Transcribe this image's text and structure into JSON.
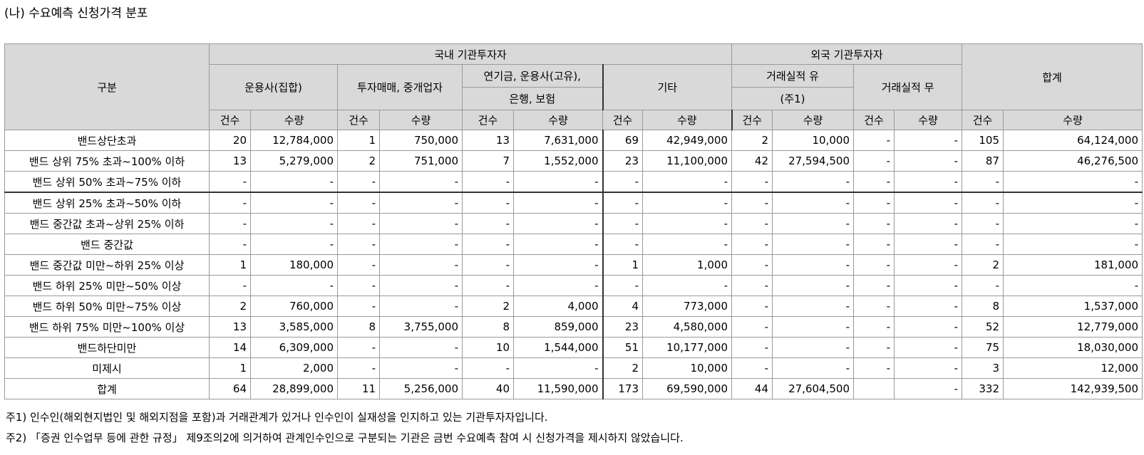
{
  "title": "(나) 수요예측 신청가격 분포",
  "header": {
    "category": "구분",
    "domestic": "국내 기관투자자",
    "foreign": "외국 기관투자자",
    "total": "합계",
    "groups": {
      "asset_mgmt": "운용사(집합)",
      "trading": "투자매매, 중개업자",
      "pension_line1": "연기금, 운용사(고유),",
      "pension_line2": "은행, 보험",
      "other": "기타",
      "foreign_yes_line1": "거래실적 유",
      "foreign_yes_line2": "(주1)",
      "foreign_no": "거래실적 무"
    },
    "count": "건수",
    "quantity": "수량"
  },
  "rows": [
    {
      "label": "밴드상단초과",
      "cells": [
        "20",
        "12,784,000",
        "1",
        "750,000",
        "13",
        "7,631,000",
        "69",
        "42,949,000",
        "2",
        "10,000",
        "-",
        "-",
        "105",
        "64,124,000"
      ]
    },
    {
      "label": "밴드 상위 75% 초과~100% 이하",
      "cells": [
        "13",
        "5,279,000",
        "2",
        "751,000",
        "7",
        "1,552,000",
        "23",
        "11,100,000",
        "42",
        "27,594,500",
        "-",
        "-",
        "87",
        "46,276,500"
      ]
    },
    {
      "label": "밴드 상위 50% 초과~75% 이하",
      "cells": [
        "-",
        "-",
        "-",
        "-",
        "-",
        "-",
        "-",
        "-",
        "-",
        "-",
        "-",
        "-",
        "-",
        "-"
      ]
    },
    {
      "label": "밴드 상위 25% 초과~50% 이하",
      "cells": [
        "-",
        "-",
        "-",
        "-",
        "-",
        "-",
        "-",
        "-",
        "-",
        "-",
        "-",
        "-",
        "-",
        "-"
      ]
    },
    {
      "label": "밴드 중간값 초과~상위 25% 이하",
      "cells": [
        "-",
        "-",
        "-",
        "-",
        "-",
        "-",
        "-",
        "-",
        "-",
        "-",
        "-",
        "-",
        "-",
        "-"
      ]
    },
    {
      "label": "밴드 중간값",
      "cells": [
        "-",
        "-",
        "-",
        "-",
        "-",
        "-",
        "-",
        "-",
        "-",
        "-",
        "-",
        "-",
        "-",
        "-"
      ]
    },
    {
      "label": "밴드 중간값 미만~하위 25% 이상",
      "cells": [
        "1",
        "180,000",
        "-",
        "-",
        "-",
        "-",
        "1",
        "1,000",
        "-",
        "-",
        "-",
        "-",
        "2",
        "181,000"
      ]
    },
    {
      "label": "밴드 하위 25% 미만~50% 이상",
      "cells": [
        "-",
        "-",
        "-",
        "-",
        "-",
        "-",
        "-",
        "-",
        "-",
        "-",
        "-",
        "-",
        "-",
        "-"
      ]
    },
    {
      "label": "밴드 하위 50% 미만~75% 이상",
      "cells": [
        "2",
        "760,000",
        "-",
        "-",
        "2",
        "4,000",
        "4",
        "773,000",
        "-",
        "-",
        "-",
        "-",
        "8",
        "1,537,000"
      ]
    },
    {
      "label": "밴드 하위 75% 미만~100% 이상",
      "cells": [
        "13",
        "3,585,000",
        "8",
        "3,755,000",
        "8",
        "859,000",
        "23",
        "4,580,000",
        "-",
        "-",
        "-",
        "-",
        "52",
        "12,779,000"
      ]
    },
    {
      "label": "밴드하단미만",
      "cells": [
        "14",
        "6,309,000",
        "-",
        "-",
        "10",
        "1,544,000",
        "51",
        "10,177,000",
        "-",
        "-",
        "-",
        "-",
        "75",
        "18,030,000"
      ]
    },
    {
      "label": "미제시",
      "cells": [
        "1",
        "2,000",
        "-",
        "-",
        "-",
        "-",
        "2",
        "10,000",
        "-",
        "-",
        "-",
        "-",
        "3",
        "12,000"
      ]
    },
    {
      "label": "합계",
      "cells": [
        "64",
        "28,899,000",
        "11",
        "5,256,000",
        "40",
        "11,590,000",
        "173",
        "69,590,000",
        "44",
        "27,604,500",
        "",
        "-",
        "332",
        "142,939,500"
      ]
    }
  ],
  "notes": [
    "주1) 인수인(해외현지법인 및 해외지점을 포함)과 거래관계가 있거나 인수인이 실재성을 인지하고 있는 기관투자자입니다.",
    "주2) 「증권 인수업무 등에 관한 규정」 제9조의2에 의거하여 관계인수인으로 구분되는 기관은 금번 수요예측 참여 시 신청가격을 제시하지 않았습니다."
  ]
}
